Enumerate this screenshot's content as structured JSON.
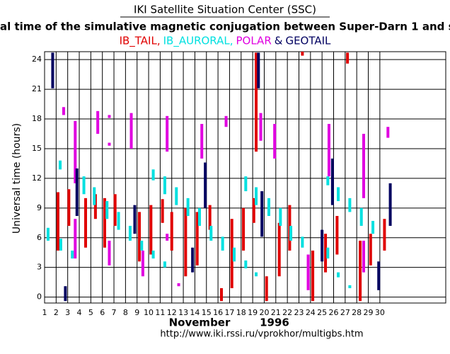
{
  "chart_data": {
    "type": "range",
    "title": "IKI Satellite Situation Center (SSC)",
    "subtitle": "al time of the simulative magnetic conjugation between Super-Darn 1 and satellit",
    "legend_joiner": "&",
    "y_label": "Universal time (hours)",
    "x_label": "November",
    "x_label_year": "1996",
    "url": "http://www.iki.rssi.ru/vprokhor/multigbs.htm",
    "xlim": [
      1,
      35.7
    ],
    "ylim": [
      -0.6,
      24.8
    ],
    "xticks": [
      1,
      2,
      3,
      4,
      5,
      6,
      7,
      8,
      9,
      10,
      11,
      12,
      13,
      14,
      15,
      16,
      17,
      18,
      19,
      20,
      21,
      22,
      23,
      24,
      25,
      26,
      27,
      28,
      29,
      30
    ],
    "yticks": [
      0,
      3,
      6,
      9,
      12,
      15,
      18,
      21,
      24
    ],
    "grid": true,
    "series": [
      {
        "name": "IB_TAIL,",
        "color": "#e00000",
        "values": [
          [
            2.16,
            4.7,
            10.6
          ],
          [
            3.1,
            7.2,
            10.9
          ],
          [
            4.55,
            5,
            10
          ],
          [
            5.4,
            7.9,
            10.4
          ],
          [
            6.2,
            5,
            10
          ],
          [
            7.1,
            7.2,
            10.4
          ],
          [
            9.2,
            3.6,
            8.6
          ],
          [
            10.2,
            4.3,
            9.3
          ],
          [
            11.2,
            7.5,
            9.9
          ],
          [
            12,
            4.7,
            8.6
          ],
          [
            13.2,
            2.1,
            9
          ],
          [
            14.2,
            3.2,
            8.6
          ],
          [
            15.3,
            6.8,
            9.3
          ],
          [
            16.3,
            -0.4,
            0.9
          ],
          [
            17.2,
            0.9,
            7.9
          ],
          [
            18.2,
            4.7,
            9
          ],
          [
            19.1,
            7.5,
            10
          ],
          [
            19.3,
            14.7,
            24.7
          ],
          [
            20.2,
            -0.4,
            2.1
          ],
          [
            21.3,
            2.1,
            7.5
          ],
          [
            22.2,
            4.7,
            9.3
          ],
          [
            23.3,
            24.4,
            24.8
          ],
          [
            24.2,
            -0.4,
            4.7
          ],
          [
            25.3,
            2.5,
            6.4
          ],
          [
            26.3,
            4.3,
            8.2
          ],
          [
            27.2,
            23.6,
            24.7
          ],
          [
            28.3,
            -0.4,
            5.7
          ],
          [
            29.2,
            3.2,
            6.4
          ],
          [
            30.4,
            4.7,
            7.9
          ]
        ]
      },
      {
        "name": "IB_AURORAL,",
        "color": "#00e0e0",
        "values": [
          [
            1.3,
            5.7,
            7
          ],
          [
            2.35,
            12.9,
            13.8
          ],
          [
            2.4,
            4.7,
            5.9
          ],
          [
            3.4,
            3.9,
            4.7
          ],
          [
            4.4,
            10.4,
            12.2
          ],
          [
            5.3,
            9.3,
            11.1
          ],
          [
            6.4,
            7.9,
            9.7
          ],
          [
            7.4,
            6.8,
            8.6
          ],
          [
            8.4,
            5.7,
            7.2
          ],
          [
            9.4,
            4.7,
            5.7
          ],
          [
            10.4,
            11.8,
            12.9
          ],
          [
            10.4,
            3.9,
            4.7
          ],
          [
            11.4,
            10.4,
            12.2
          ],
          [
            11.4,
            3,
            3.6
          ],
          [
            12.4,
            9.3,
            11.1
          ],
          [
            13.4,
            8.2,
            10
          ],
          [
            14.4,
            7.2,
            9
          ],
          [
            15.4,
            5.7,
            7.2
          ],
          [
            16.4,
            4.7,
            6.1
          ],
          [
            17.4,
            3.6,
            5
          ],
          [
            18.4,
            10.7,
            12.2
          ],
          [
            18.4,
            2.9,
            3.7
          ],
          [
            19.3,
            9.3,
            11.1
          ],
          [
            19.3,
            2.1,
            2.5
          ],
          [
            20.4,
            8.2,
            10
          ],
          [
            21.4,
            7.2,
            9
          ],
          [
            22.3,
            5.7,
            7.2
          ],
          [
            23.3,
            5,
            6.1
          ],
          [
            25.5,
            11.3,
            12.2
          ],
          [
            25.5,
            3.9,
            5
          ],
          [
            26.4,
            9.7,
            11.1
          ],
          [
            26.4,
            2,
            2.5
          ],
          [
            27.4,
            8.6,
            10
          ],
          [
            27.4,
            0.9,
            1.2
          ],
          [
            28.4,
            7.2,
            9
          ],
          [
            29.4,
            6.4,
            7.7
          ]
        ]
      },
      {
        "name": "POLAR",
        "color": "#e000e0",
        "values": [
          [
            2.65,
            18.4,
            19.2
          ],
          [
            3.65,
            11.5,
            17.8
          ],
          [
            3.65,
            3.9,
            7.9
          ],
          [
            5.6,
            16.5,
            18.8
          ],
          [
            6.6,
            18.1,
            18.4
          ],
          [
            6.6,
            15.3,
            15.6
          ],
          [
            6.6,
            3.2,
            5.7
          ],
          [
            8.5,
            15,
            18.6
          ],
          [
            9.5,
            2.1,
            4.7
          ],
          [
            11.6,
            14.7,
            18.3
          ],
          [
            11.6,
            5.7,
            6.4
          ],
          [
            12.6,
            1.1,
            1.4
          ],
          [
            14.6,
            14,
            17.5
          ],
          [
            16.7,
            17.2,
            18.3
          ],
          [
            19.7,
            15.8,
            18.6
          ],
          [
            20.9,
            14,
            17.5
          ],
          [
            23.8,
            0.7,
            4.3
          ],
          [
            25.6,
            12.2,
            17.5
          ],
          [
            28.6,
            10,
            16.5
          ],
          [
            28.6,
            2.5,
            5.7
          ],
          [
            30.7,
            16.1,
            17.2
          ]
        ]
      },
      {
        "name": "GEOTAIL",
        "color": "#000060",
        "values": [
          [
            1.7,
            21.1,
            24.7
          ],
          [
            2.8,
            -0.4,
            1.1
          ],
          [
            3.8,
            8.2,
            13
          ],
          [
            8.8,
            6.4,
            9.3
          ],
          [
            13.8,
            2.5,
            5
          ],
          [
            14.9,
            9,
            13.6
          ],
          [
            19.5,
            21.1,
            24.7
          ],
          [
            19.8,
            6.1,
            10.7
          ],
          [
            25,
            3.6,
            6.8
          ],
          [
            25.9,
            9.3,
            14
          ],
          [
            29.9,
            0.7,
            3.6
          ],
          [
            30.9,
            7.2,
            11.5
          ]
        ]
      }
    ]
  }
}
